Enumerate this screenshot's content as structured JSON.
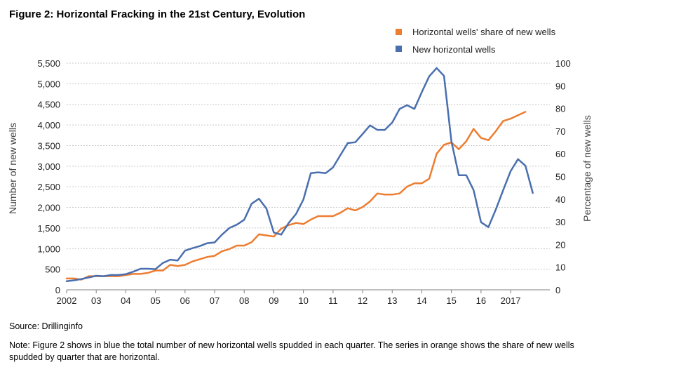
{
  "title": "Figure 2: Horizontal Fracking in the 21st Century, Evolution",
  "source": "Source: Drillinginfo",
  "note": "Note: Figure 2 shows in blue the total number of new horizontal wells spudded in each quarter. The series in orange shows the share of new wells spudded by quarter that are horizontal.",
  "colors": {
    "share": "#ed7d31",
    "wells": "#4a6fae",
    "grid": "#c8c8c8",
    "axis": "#7f7f7f"
  },
  "chart_data": {
    "type": "line",
    "x_start": 2002,
    "x_step": 0.25,
    "xlim": [
      2002,
      2017.875
    ],
    "x_ticks": [
      {
        "x": 2002,
        "label": "2002"
      },
      {
        "x": 2003,
        "label": "03"
      },
      {
        "x": 2004,
        "label": "04"
      },
      {
        "x": 2005,
        "label": "05"
      },
      {
        "x": 2006,
        "label": "06"
      },
      {
        "x": 2007,
        "label": "07"
      },
      {
        "x": 2008,
        "label": "08"
      },
      {
        "x": 2009,
        "label": "09"
      },
      {
        "x": 2010,
        "label": "10"
      },
      {
        "x": 2011,
        "label": "11"
      },
      {
        "x": 2012,
        "label": "12"
      },
      {
        "x": 2013,
        "label": "13"
      },
      {
        "x": 2014,
        "label": "14"
      },
      {
        "x": 2015,
        "label": "15"
      },
      {
        "x": 2016,
        "label": "16"
      },
      {
        "x": 2017,
        "label": "2017"
      }
    ],
    "y_left": {
      "label": "Number of new wells",
      "min": 0,
      "max": 5500,
      "ticks": [
        {
          "v": 0,
          "label": "0"
        },
        {
          "v": 500,
          "label": "500"
        },
        {
          "v": 1000,
          "label": "1,000"
        },
        {
          "v": 1500,
          "label": "1,500"
        },
        {
          "v": 2000,
          "label": "2,000"
        },
        {
          "v": 2500,
          "label": "2,500"
        },
        {
          "v": 3000,
          "label": "3,000"
        },
        {
          "v": 3500,
          "label": "3,500"
        },
        {
          "v": 4000,
          "label": "4,000"
        },
        {
          "v": 4500,
          "label": "4,500"
        },
        {
          "v": 5000,
          "label": "5,000"
        },
        {
          "v": 5500,
          "label": "5,500"
        }
      ]
    },
    "y_right": {
      "label": "Percentage of new wells",
      "min": 0,
      "max": 100,
      "ticks": [
        {
          "v": 0,
          "label": "0"
        },
        {
          "v": 10,
          "label": "10"
        },
        {
          "v": 20,
          "label": "20"
        },
        {
          "v": 30,
          "label": "30"
        },
        {
          "v": 40,
          "label": "40"
        },
        {
          "v": 50,
          "label": "50"
        },
        {
          "v": 60,
          "label": "60"
        },
        {
          "v": 70,
          "label": "70"
        },
        {
          "v": 80,
          "label": "80"
        },
        {
          "v": 90,
          "label": "90"
        },
        {
          "v": 100,
          "label": "100"
        }
      ]
    },
    "series": [
      {
        "name": "Horizontal wells' share of new wells",
        "axis": "right",
        "color": "#ed7d31",
        "values": [
          5,
          5,
          4.5,
          6,
          6,
          6,
          6,
          6,
          6.5,
          7,
          7,
          7.5,
          8.5,
          8.5,
          11,
          10.5,
          11,
          12.5,
          13.5,
          14.5,
          15,
          17,
          18,
          19.5,
          19.5,
          21,
          24.5,
          24,
          23.5,
          27,
          28.5,
          29.5,
          29,
          31,
          32.5,
          32.5,
          32.5,
          34,
          36,
          35,
          36.5,
          39,
          42.5,
          42,
          42,
          42.5,
          45.5,
          47,
          47,
          49,
          60,
          64,
          65,
          62,
          65.5,
          71,
          67,
          66,
          70,
          74.5,
          75.5,
          77,
          78.5
        ]
      },
      {
        "name": "New horizontal wells",
        "axis": "left",
        "color": "#4a6fae",
        "values": [
          210,
          230,
          260,
          300,
          340,
          330,
          360,
          360,
          380,
          440,
          510,
          510,
          500,
          650,
          730,
          710,
          950,
          1010,
          1060,
          1130,
          1150,
          1340,
          1500,
          1580,
          1700,
          2090,
          2210,
          1970,
          1390,
          1340,
          1620,
          1840,
          2190,
          2830,
          2850,
          2830,
          2970,
          3270,
          3560,
          3580,
          3780,
          3990,
          3880,
          3880,
          4060,
          4390,
          4480,
          4390,
          4800,
          5180,
          5380,
          5190,
          3600,
          2780,
          2780,
          2420,
          1640,
          1520,
          1950,
          2420,
          2880,
          3170,
          3010,
          2350
        ]
      }
    ]
  }
}
